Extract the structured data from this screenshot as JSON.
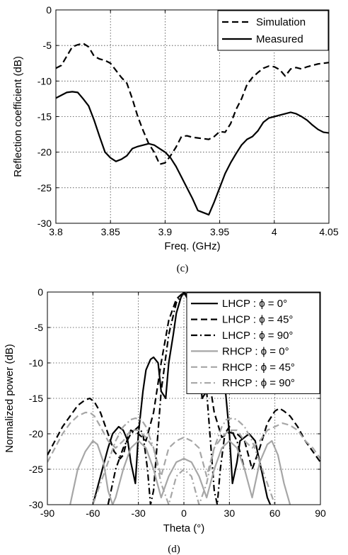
{
  "chart_data": [
    {
      "type": "line",
      "caption": "(c)",
      "xlabel": "Freq. (GHz)",
      "ylabel": "Reflection coefficient (dB)",
      "xlim": [
        3.8,
        4.05
      ],
      "ylim": [
        -30,
        0
      ],
      "xticks": [
        3.8,
        3.85,
        3.9,
        3.95,
        4.0,
        4.05
      ],
      "xtick_labels": [
        "3.8",
        "3.85",
        "3.9",
        "3.95",
        "4",
        "4.05"
      ],
      "yticks": [
        0,
        -5,
        -10,
        -15,
        -20,
        -25,
        -30
      ],
      "ytick_labels": [
        "0",
        "-5",
        "-10",
        "-15",
        "-20",
        "-25",
        "-30"
      ],
      "grid": true,
      "legend_position": "top-right",
      "series": [
        {
          "name": "Simulation",
          "color": "#000000",
          "dash": "dashed",
          "x": [
            3.8,
            3.805,
            3.81,
            3.815,
            3.82,
            3.825,
            3.83,
            3.835,
            3.84,
            3.845,
            3.85,
            3.855,
            3.86,
            3.865,
            3.87,
            3.875,
            3.88,
            3.885,
            3.89,
            3.895,
            3.9,
            3.905,
            3.91,
            3.915,
            3.92,
            3.925,
            3.93,
            3.935,
            3.94,
            3.945,
            3.95,
            3.955,
            3.96,
            3.965,
            3.97,
            3.975,
            3.98,
            3.985,
            3.99,
            3.995,
            4.0,
            4.005,
            4.01,
            4.015,
            4.02,
            4.025,
            4.03,
            4.035,
            4.04,
            4.045,
            4.05
          ],
          "y": [
            -8.2,
            -7.8,
            -6.5,
            -5.2,
            -4.9,
            -4.7,
            -5.2,
            -6.5,
            -6.9,
            -7.1,
            -7.5,
            -8.5,
            -9.5,
            -10.3,
            -12.5,
            -15.0,
            -17.0,
            -18.8,
            -20.0,
            -21.7,
            -21.5,
            -20.5,
            -19.3,
            -17.8,
            -17.7,
            -17.9,
            -18.0,
            -18.1,
            -18.2,
            -17.8,
            -17.1,
            -17.2,
            -16.0,
            -14.0,
            -12.5,
            -10.5,
            -9.5,
            -8.8,
            -8.2,
            -7.9,
            -8.0,
            -8.4,
            -9.3,
            -8.3,
            -8.1,
            -8.3,
            -8.0,
            -7.8,
            -7.6,
            -7.5,
            -7.4
          ]
        },
        {
          "name": "Measured",
          "color": "#000000",
          "dash": "solid",
          "x": [
            3.8,
            3.805,
            3.81,
            3.815,
            3.82,
            3.825,
            3.83,
            3.835,
            3.84,
            3.845,
            3.85,
            3.855,
            3.86,
            3.865,
            3.87,
            3.875,
            3.88,
            3.885,
            3.89,
            3.895,
            3.9,
            3.905,
            3.91,
            3.915,
            3.92,
            3.925,
            3.93,
            3.935,
            3.94,
            3.945,
            3.95,
            3.955,
            3.96,
            3.965,
            3.97,
            3.975,
            3.98,
            3.985,
            3.99,
            3.995,
            4.0,
            4.005,
            4.01,
            4.015,
            4.02,
            4.025,
            4.03,
            4.035,
            4.04,
            4.045,
            4.05
          ],
          "y": [
            -12.4,
            -12.0,
            -11.6,
            -11.5,
            -11.6,
            -12.5,
            -13.5,
            -15.5,
            -17.8,
            -20.0,
            -20.8,
            -21.3,
            -21.0,
            -20.5,
            -19.5,
            -19.2,
            -19.0,
            -18.8,
            -19.0,
            -19.5,
            -20.0,
            -20.8,
            -22.0,
            -23.5,
            -25.0,
            -26.5,
            -28.2,
            -28.5,
            -28.8,
            -27.0,
            -25.0,
            -23.0,
            -21.5,
            -20.2,
            -19.0,
            -18.2,
            -17.8,
            -17.0,
            -15.8,
            -15.2,
            -15.0,
            -14.8,
            -14.6,
            -14.4,
            -14.6,
            -15.0,
            -15.5,
            -16.2,
            -16.8,
            -17.2,
            -17.3
          ]
        }
      ]
    },
    {
      "type": "line",
      "caption": "(d)",
      "xlabel": "Theta (°)",
      "ylabel": "Normalized power (dB)",
      "xlim": [
        -90,
        90
      ],
      "ylim": [
        -30,
        0
      ],
      "xticks": [
        -90,
        -60,
        -30,
        0,
        30,
        60,
        90
      ],
      "xtick_labels": [
        "-90",
        "-60",
        "-30",
        "0",
        "30",
        "60",
        "90"
      ],
      "yticks": [
        0,
        -5,
        -10,
        -15,
        -20,
        -25,
        -30
      ],
      "ytick_labels": [
        "0",
        "-5",
        "-10",
        "-15",
        "-20",
        "-25",
        "-30"
      ],
      "grid": true,
      "legend_position": "top-right",
      "series": [
        {
          "name": "LHCP : ϕ = 0°",
          "color": "#000000",
          "dash": "solid",
          "x": [
            -60,
            -55,
            -50,
            -47,
            -43,
            -40,
            -37,
            -35,
            -32,
            -30,
            -27,
            -25,
            -22,
            -20,
            -17,
            -15,
            -12,
            -10,
            -7,
            -5,
            -2,
            0,
            2,
            5,
            7,
            10,
            12,
            15,
            17,
            20,
            22,
            25,
            27,
            30,
            32,
            35,
            37,
            40,
            43,
            47,
            50,
            55,
            57
          ],
          "y": [
            -30,
            -26,
            -22,
            -20,
            -19,
            -19.5,
            -21,
            -24,
            -27,
            -20,
            -14,
            -11,
            -9.5,
            -9.2,
            -10,
            -14,
            -15,
            -10,
            -6,
            -3,
            -0.8,
            0,
            -0.8,
            -3,
            -6,
            -10,
            -15,
            -14,
            -10,
            -9.2,
            -9,
            -9.5,
            -13,
            -20,
            -27,
            -24,
            -21,
            -20.5,
            -20,
            -21,
            -24,
            -29,
            -30
          ]
        },
        {
          "name": "LHCP : ϕ = 45°",
          "color": "#000000",
          "dash": "dashed",
          "x": [
            -90,
            -85,
            -80,
            -75,
            -70,
            -65,
            -62,
            -59,
            -55,
            -50,
            -46,
            -42,
            -40,
            -37,
            -35,
            -30,
            -25,
            -20,
            -15,
            -10,
            -5,
            0,
            5,
            10,
            15,
            20,
            25,
            30,
            35,
            40,
            45,
            50,
            55,
            60,
            63,
            66,
            70,
            75,
            80,
            85,
            90
          ],
          "y": [
            -23,
            -21,
            -19,
            -17.5,
            -16,
            -15.2,
            -15,
            -15.5,
            -17,
            -20,
            -22.5,
            -23.5,
            -23,
            -20.5,
            -19.5,
            -20,
            -21,
            -17,
            -10,
            -4,
            -1,
            0,
            -1,
            -4,
            -10,
            -17,
            -20.5,
            -19.8,
            -20,
            -21,
            -25,
            -22,
            -18.5,
            -16.8,
            -16.4,
            -16.8,
            -17.5,
            -19,
            -21,
            -22.5,
            -24
          ]
        },
        {
          "name": "LHCP : ϕ = 90°",
          "color": "#000000",
          "dash": "dashdot",
          "x": [
            -50,
            -45,
            -40,
            -35,
            -30,
            -27,
            -24,
            -22,
            -20,
            -15,
            -10,
            -5,
            0,
            5,
            10,
            15,
            20,
            22,
            24,
            27,
            30,
            35,
            40
          ],
          "y": [
            -30,
            -25,
            -22,
            -20,
            -19,
            -20,
            -25,
            -30,
            -28,
            -14,
            -6,
            -1.5,
            0,
            -1.5,
            -6,
            -14,
            -28,
            -30,
            -25,
            -20,
            -19,
            -21,
            -25
          ]
        },
        {
          "name": "RHCP : ϕ = 0°",
          "color": "#a6a6a6",
          "dash": "solid",
          "x": [
            -75,
            -70,
            -65,
            -60,
            -57,
            -53,
            -50,
            -47,
            -45,
            -40,
            -35,
            -30,
            -25,
            -20,
            -15,
            -10,
            -5,
            0,
            5,
            10,
            15,
            20,
            25,
            30,
            35,
            40,
            45,
            50,
            55,
            58,
            62,
            66,
            70
          ],
          "y": [
            -30,
            -25,
            -22.5,
            -21,
            -21.5,
            -24,
            -28,
            -30,
            -29,
            -25,
            -22,
            -21,
            -22,
            -25,
            -29,
            -26,
            -24,
            -23.5,
            -24,
            -26,
            -29,
            -25,
            -22,
            -21,
            -22,
            -25,
            -29,
            -24,
            -21.5,
            -21,
            -23,
            -27,
            -30
          ]
        },
        {
          "name": "RHCP : ϕ = 45°",
          "color": "#a6a6a6",
          "dash": "dashed",
          "x": [
            -90,
            -85,
            -80,
            -75,
            -70,
            -65,
            -62,
            -59,
            -55,
            -50,
            -45,
            -40,
            -35,
            -30,
            -25,
            -20,
            -15,
            -10,
            -5,
            0,
            5,
            10,
            15,
            20,
            25,
            30,
            35,
            40,
            45,
            50,
            55,
            60,
            65,
            70,
            75,
            80,
            85,
            90
          ],
          "y": [
            -24,
            -22,
            -20,
            -18.5,
            -17.5,
            -17,
            -17,
            -17.5,
            -19,
            -21,
            -22,
            -21,
            -19.5,
            -19.5,
            -20.5,
            -22,
            -26,
            -22,
            -21,
            -20.5,
            -21,
            -22,
            -26,
            -22,
            -20.5,
            -19.5,
            -19.5,
            -21,
            -22,
            -21,
            -19.5,
            -19,
            -18.5,
            -18.8,
            -19.5,
            -21,
            -22,
            -23.5
          ]
        },
        {
          "name": "RHCP : ϕ = 90°",
          "color": "#a6a6a6",
          "dash": "dashdot",
          "x": [
            -60,
            -55,
            -50,
            -45,
            -40,
            -35,
            -32,
            -28,
            -25,
            -20,
            -15,
            -10,
            -5,
            0,
            5,
            10,
            15,
            20,
            25,
            28,
            32,
            35,
            40,
            45,
            50,
            55,
            60
          ],
          "y": [
            -30,
            -27,
            -24,
            -21,
            -19,
            -18,
            -17.8,
            -18,
            -19,
            -22,
            -27,
            -30,
            -26,
            -25,
            -26,
            -30,
            -27,
            -22,
            -19,
            -18,
            -17.8,
            -18,
            -19,
            -21,
            -24,
            -27,
            -30
          ]
        }
      ]
    }
  ]
}
